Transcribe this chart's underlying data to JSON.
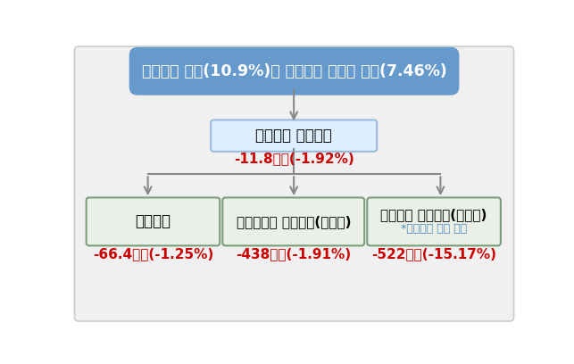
{
  "bg_color": "#f0f0f0",
  "outer_border": "#cccccc",
  "top_box": {
    "text": "최저임금 인상(10.9%)과 신용카드 수수료 인하(7.46%)",
    "box_color": "#6699cc",
    "text_color": "#ffffff",
    "fontsize": 12.5
  },
  "mid_box": {
    "text": "신용카드 이용금액",
    "sub_text": "-11.8조원(-1.92%)",
    "box_color": "#ddeeff",
    "border_color": "#99bbdd",
    "text_color": "#000000",
    "sub_color": "#cc0000",
    "fontsize": 12,
    "sub_fontsize": 11
  },
  "bottom_boxes": [
    {
      "text": "총매출액",
      "sub_text": "-66.4조원(-1.25%)",
      "box_color": "#eaf0e8",
      "border_color": "#7a9e7a",
      "text_color": "#000000",
      "sub_color": "#cc0000",
      "fontsize": 12,
      "sub_fontsize": 11
    },
    {
      "text": "비단순노무 노동수요(일자리)",
      "sub_text": "-438천명(-1.91%)",
      "box_color": "#eaf0e8",
      "border_color": "#7a9e7a",
      "text_color": "#000000",
      "sub_color": "#cc0000",
      "fontsize": 11,
      "sub_fontsize": 11
    },
    {
      "text": "단순노무 노동수요(일자리)",
      "note_text": "*최저임금 적용 대상",
      "sub_text": "-522천명(-15.17%)",
      "box_color": "#eaf0e8",
      "border_color": "#7a9e7a",
      "text_color": "#000000",
      "note_color": "#5588bb",
      "sub_color": "#cc0000",
      "fontsize": 11,
      "sub_fontsize": 11,
      "note_fontsize": 9
    }
  ],
  "arrow_color": "#888888"
}
